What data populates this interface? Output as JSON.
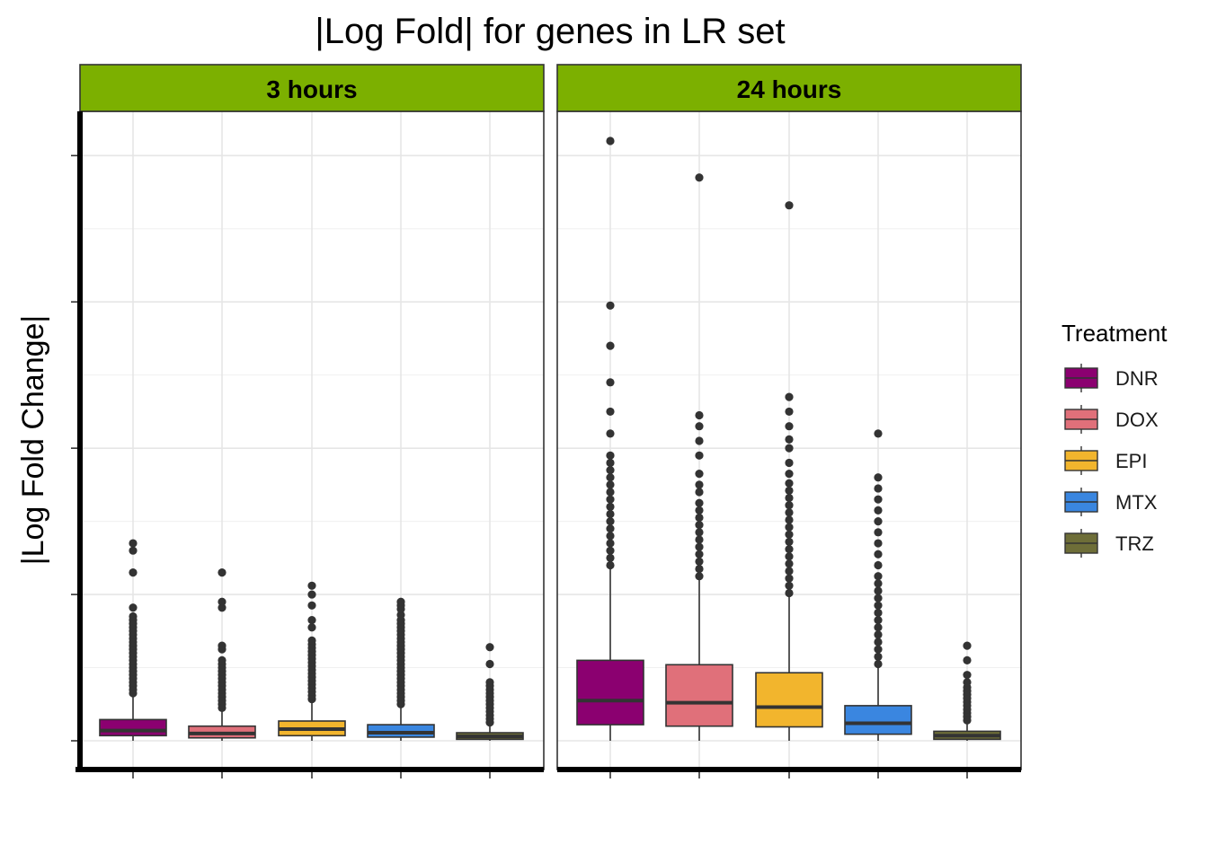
{
  "chart_data": {
    "type": "boxplot",
    "title": "|Log Fold| for genes in LR set",
    "ylabel": "|Log Fold Change|",
    "xlabel": "",
    "ylim": [
      0,
      8.2
    ],
    "grid": true,
    "legend_placement": "right",
    "legend_title": "Treatment",
    "categories": [
      "DNR",
      "DOX",
      "EPI",
      "MTX",
      "TRZ"
    ],
    "colors": {
      "DNR": "#8b0070",
      "DOX": "#e0707a",
      "EPI": "#f2b52d",
      "MTX": "#3a86e0",
      "TRZ": "#6e6e38",
      "strip": "#7cb000"
    },
    "panels": [
      {
        "label": "3 hours",
        "boxes": [
          {
            "treatment": "DNR",
            "q1": 0.07,
            "median": 0.14,
            "q3": 0.29,
            "whisker_low": 0.0,
            "whisker_high": 0.62,
            "outliers": [
              0.65,
              0.7,
              0.75,
              0.8,
              0.85,
              0.9,
              0.95,
              1.0,
              1.05,
              1.1,
              1.15,
              1.2,
              1.25,
              1.3,
              1.35,
              1.4,
              1.45,
              1.5,
              1.55,
              1.6,
              1.65,
              1.7,
              1.82,
              2.3,
              2.6,
              2.7
            ]
          },
          {
            "treatment": "DOX",
            "q1": 0.04,
            "median": 0.1,
            "q3": 0.2,
            "whisker_low": 0.0,
            "whisker_high": 0.42,
            "outliers": [
              0.45,
              0.5,
              0.55,
              0.6,
              0.65,
              0.7,
              0.75,
              0.8,
              0.85,
              0.9,
              0.95,
              1.0,
              1.05,
              1.1,
              1.25,
              1.3,
              1.82,
              1.9,
              2.3
            ]
          },
          {
            "treatment": "EPI",
            "q1": 0.07,
            "median": 0.16,
            "q3": 0.27,
            "whisker_low": 0.0,
            "whisker_high": 0.54,
            "outliers": [
              0.57,
              0.62,
              0.67,
              0.72,
              0.77,
              0.82,
              0.87,
              0.92,
              0.97,
              1.02,
              1.07,
              1.12,
              1.17,
              1.22,
              1.27,
              1.32,
              1.37,
              1.55,
              1.65,
              1.85,
              2.0,
              2.12
            ]
          },
          {
            "treatment": "MTX",
            "q1": 0.05,
            "median": 0.11,
            "q3": 0.22,
            "whisker_low": 0.0,
            "whisker_high": 0.48,
            "outliers": [
              0.5,
              0.55,
              0.6,
              0.65,
              0.7,
              0.75,
              0.8,
              0.85,
              0.9,
              0.95,
              1.0,
              1.05,
              1.1,
              1.15,
              1.2,
              1.25,
              1.3,
              1.35,
              1.4,
              1.45,
              1.5,
              1.55,
              1.6,
              1.65,
              1.72,
              1.8,
              1.85,
              1.9
            ]
          },
          {
            "treatment": "TRZ",
            "q1": 0.02,
            "median": 0.06,
            "q3": 0.11,
            "whisker_low": 0.0,
            "whisker_high": 0.22,
            "outliers": [
              0.25,
              0.3,
              0.35,
              0.4,
              0.45,
              0.5,
              0.55,
              0.6,
              0.65,
              0.7,
              0.75,
              0.8,
              1.05,
              1.28
            ]
          }
        ]
      },
      {
        "label": "24 hours",
        "boxes": [
          {
            "treatment": "DNR",
            "q1": 0.22,
            "median": 0.55,
            "q3": 1.1,
            "whisker_low": 0.0,
            "whisker_high": 2.35,
            "outliers": [
              2.4,
              2.5,
              2.6,
              2.7,
              2.8,
              2.9,
              3.0,
              3.1,
              3.2,
              3.3,
              3.4,
              3.5,
              3.6,
              3.7,
              3.8,
              3.9,
              4.2,
              4.5,
              4.9,
              5.4,
              5.95,
              8.2
            ]
          },
          {
            "treatment": "DOX",
            "q1": 0.2,
            "median": 0.52,
            "q3": 1.04,
            "whisker_low": 0.0,
            "whisker_high": 2.2,
            "outliers": [
              2.25,
              2.35,
              2.45,
              2.55,
              2.65,
              2.75,
              2.85,
              2.95,
              3.05,
              3.15,
              3.25,
              3.4,
              3.5,
              3.65,
              3.9,
              4.1,
              4.3,
              4.45,
              7.7
            ]
          },
          {
            "treatment": "EPI",
            "q1": 0.19,
            "median": 0.46,
            "q3": 0.93,
            "whisker_low": 0.0,
            "whisker_high": 1.98,
            "outliers": [
              2.02,
              2.12,
              2.22,
              2.32,
              2.42,
              2.52,
              2.62,
              2.72,
              2.82,
              2.92,
              3.02,
              3.12,
              3.22,
              3.32,
              3.42,
              3.52,
              3.65,
              3.8,
              4.0,
              4.12,
              4.3,
              4.5,
              4.7,
              7.32
            ]
          },
          {
            "treatment": "MTX",
            "q1": 0.09,
            "median": 0.24,
            "q3": 0.48,
            "whisker_low": 0.0,
            "whisker_high": 1.0,
            "outliers": [
              1.05,
              1.15,
              1.25,
              1.35,
              1.45,
              1.55,
              1.65,
              1.75,
              1.85,
              1.95,
              2.05,
              2.15,
              2.25,
              2.4,
              2.55,
              2.7,
              2.85,
              3.0,
              3.15,
              3.3,
              3.45,
              3.6,
              4.2
            ]
          },
          {
            "treatment": "TRZ",
            "q1": 0.02,
            "median": 0.07,
            "q3": 0.13,
            "whisker_low": 0.0,
            "whisker_high": 0.25,
            "outliers": [
              0.28,
              0.33,
              0.38,
              0.43,
              0.48,
              0.53,
              0.58,
              0.63,
              0.68,
              0.73,
              0.8,
              0.9,
              1.1,
              1.3
            ]
          }
        ]
      }
    ]
  }
}
